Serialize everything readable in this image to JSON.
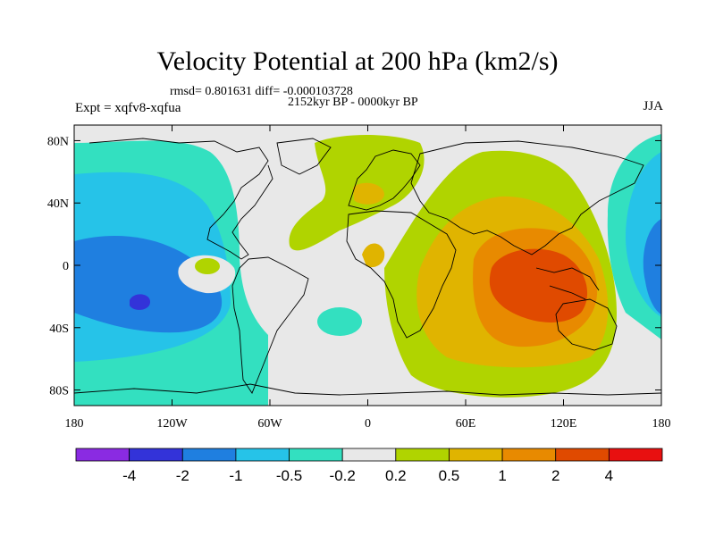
{
  "title": "Velocity Potential at 200 hPa (km2/s)",
  "stats": "rmsd= 0.801631 diff= -0.000103728",
  "period": "2152kyr BP - 0000kyr BP",
  "experiment": "Expt = xqfv8-xqfua",
  "season": "JJA",
  "colors": {
    "background_field": "#e8e8e8",
    "land_outline": "#000000"
  },
  "axis": {
    "lon_ticks": [
      {
        "value": -180,
        "label": "180"
      },
      {
        "value": -120,
        "label": "120W"
      },
      {
        "value": -60,
        "label": "60W"
      },
      {
        "value": 0,
        "label": "0"
      },
      {
        "value": 60,
        "label": "60E"
      },
      {
        "value": 120,
        "label": "120E"
      },
      {
        "value": 180,
        "label": "180"
      }
    ],
    "lat_ticks": [
      {
        "value": 80,
        "label": "80N"
      },
      {
        "value": 40,
        "label": "40N"
      },
      {
        "value": 0,
        "label": "0"
      },
      {
        "value": -40,
        "label": "40S"
      },
      {
        "value": -80,
        "label": "80S"
      }
    ],
    "lon_range": [
      -180,
      180
    ],
    "lat_range": [
      -90,
      90
    ]
  },
  "colorbar": {
    "bins": [
      {
        "color": "#8a2be2"
      },
      {
        "color": "#3333d9"
      },
      {
        "color": "#1f7fe0"
      },
      {
        "color": "#26c3e8"
      },
      {
        "color": "#33e0c0"
      },
      {
        "color": "#e8e8e8"
      },
      {
        "color": "#b0d400"
      },
      {
        "color": "#e0b400"
      },
      {
        "color": "#e88a00"
      },
      {
        "color": "#e04a00"
      },
      {
        "color": "#e81010"
      }
    ],
    "labels": [
      "-4",
      "-2",
      "-1",
      "-0.5",
      "-0.2",
      "0.2",
      "0.5",
      "1",
      "2",
      "4"
    ]
  }
}
